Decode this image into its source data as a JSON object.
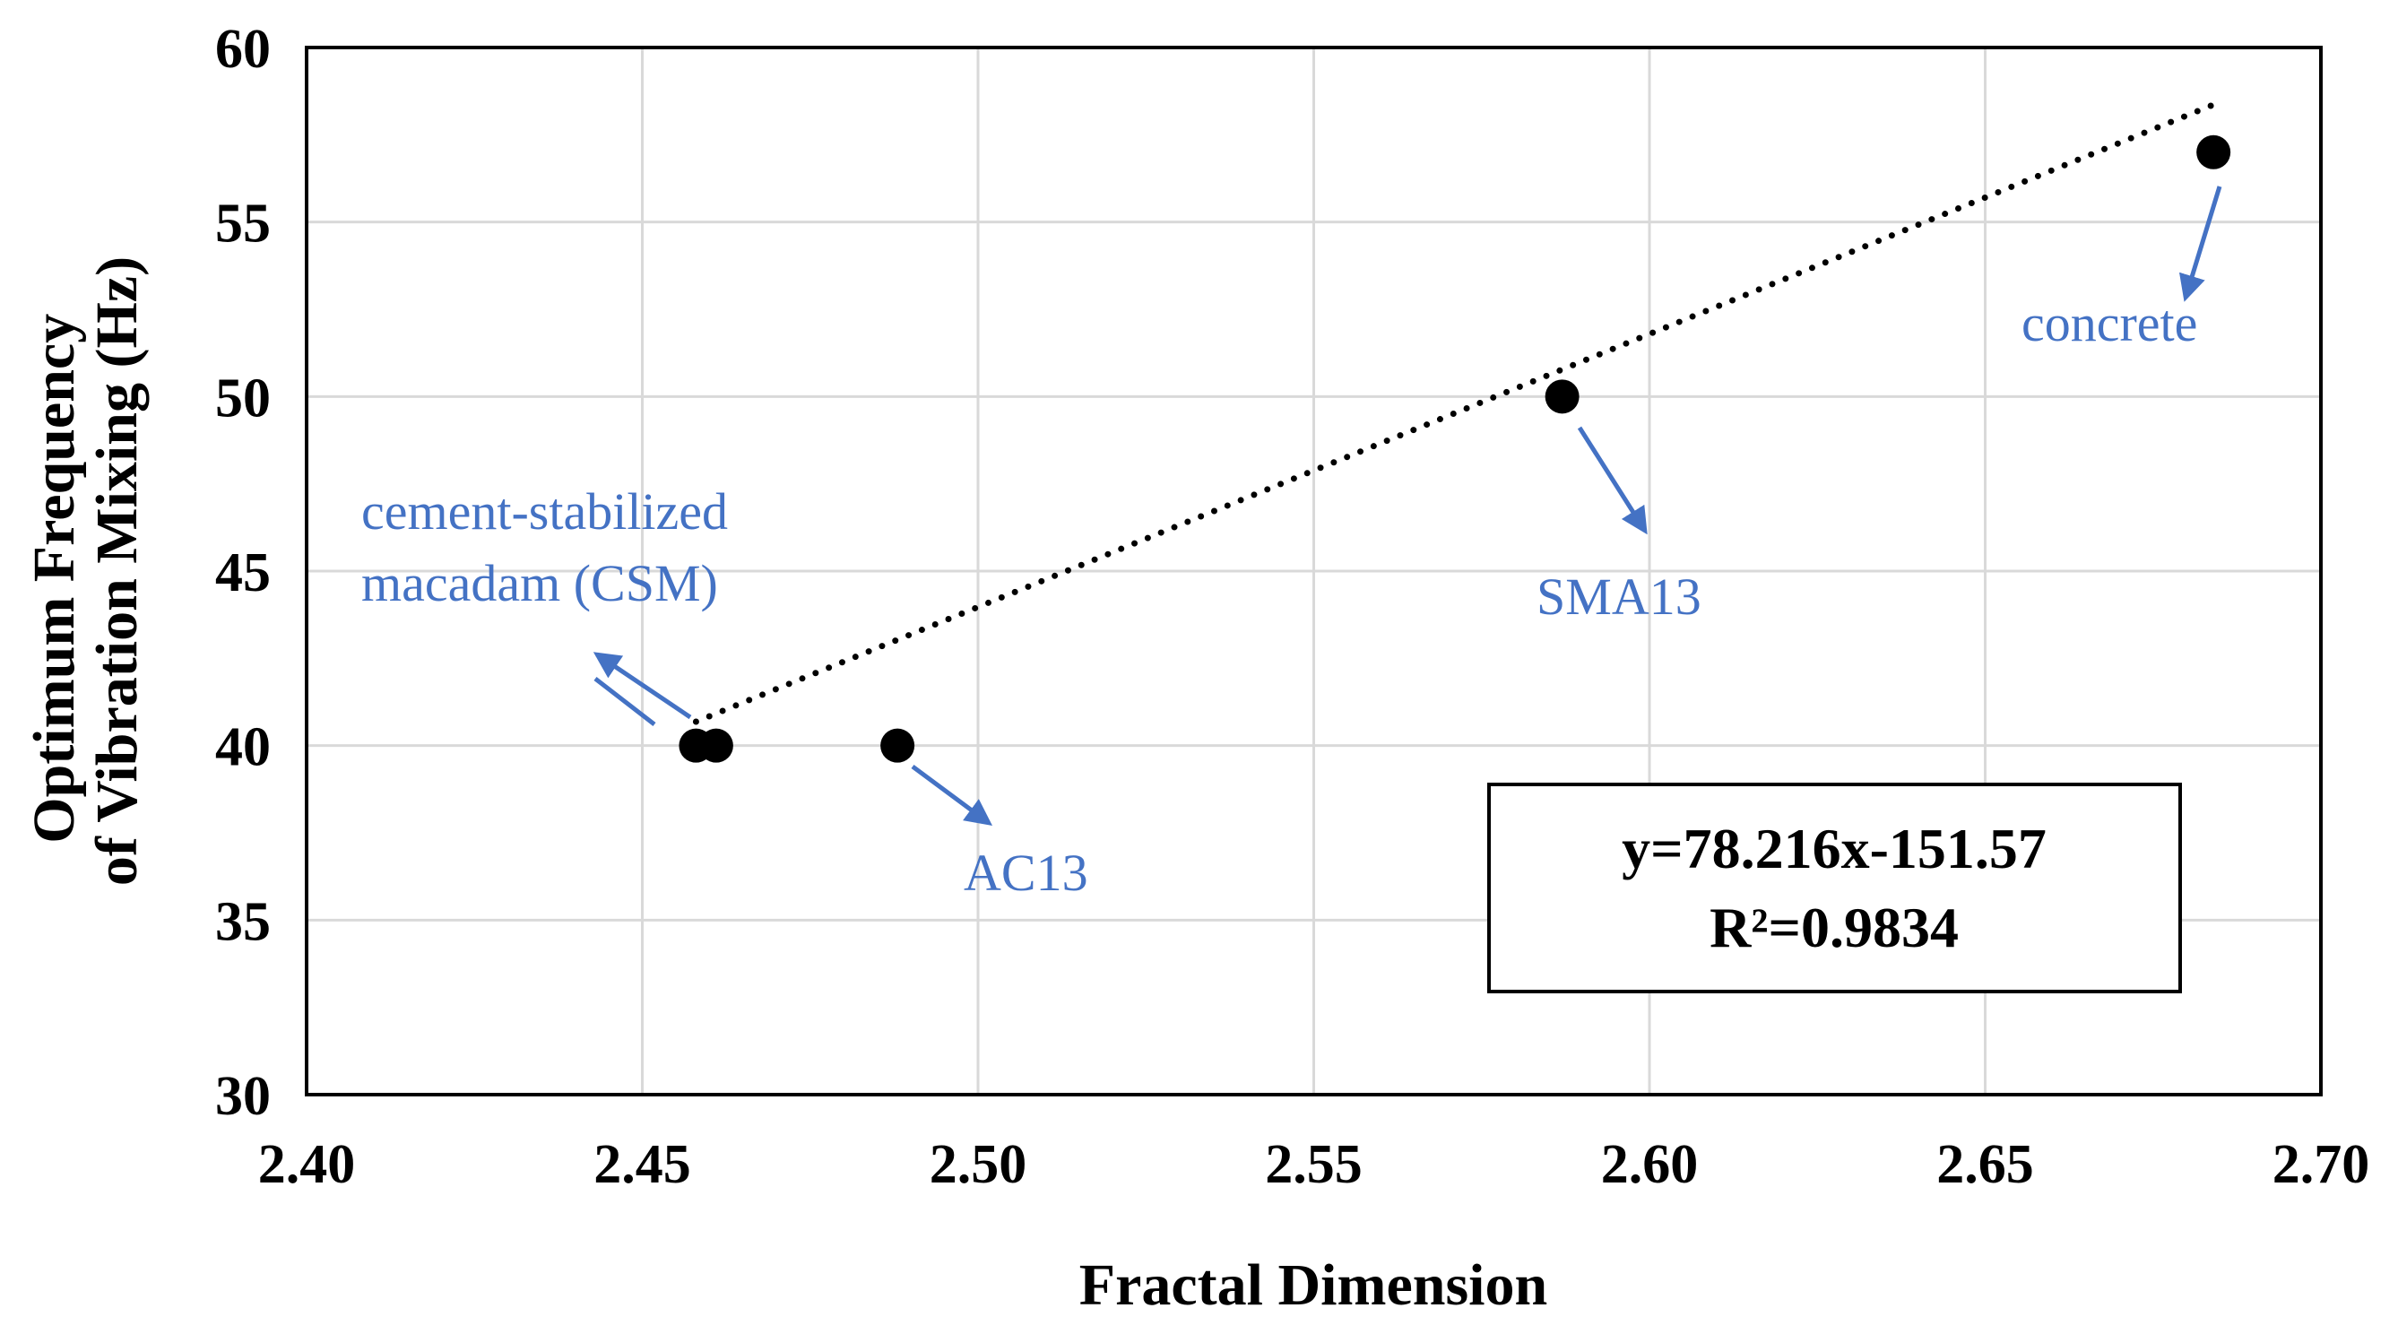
{
  "chart_data": {
    "type": "scatter",
    "title": "",
    "xlabel": "Fractal Dimension",
    "ylabel_lines": [
      "Optimum Frequency",
      "of Vibration Mixing (Hz)"
    ],
    "xlim": [
      2.4,
      2.7
    ],
    "ylim": [
      30,
      60
    ],
    "x_ticks": [
      "2.40",
      "2.45",
      "2.50",
      "2.55",
      "2.60",
      "2.65",
      "2.70"
    ],
    "y_ticks": [
      "30",
      "35",
      "40",
      "45",
      "50",
      "55",
      "60"
    ],
    "grid": true,
    "legend": "none",
    "points": [
      {
        "x": 2.458,
        "y": 40
      },
      {
        "x": 2.461,
        "y": 40
      },
      {
        "x": 2.488,
        "y": 40
      },
      {
        "x": 2.587,
        "y": 50
      },
      {
        "x": 2.684,
        "y": 57
      }
    ],
    "trendline": {
      "style": "dotted",
      "x_range": [
        2.458,
        2.684
      ],
      "slope": 78.216,
      "intercept": -151.57
    },
    "equation_box": {
      "line1": "y=78.216x-151.57",
      "line2": "R²=0.9834",
      "position": "bottom-right"
    },
    "annotations": [
      {
        "id": "csm",
        "lines": [
          "cement-stabilized",
          "macadam (CSM)"
        ]
      },
      {
        "id": "ac13",
        "lines": [
          "AC13"
        ]
      },
      {
        "id": "sma13",
        "lines": [
          "SMA13"
        ]
      },
      {
        "id": "concrete",
        "lines": [
          "concrete"
        ]
      }
    ],
    "colors": {
      "point": "#000000",
      "annotation": "#4472C4",
      "grid": "#d9d9d9",
      "axis": "#000000"
    }
  }
}
